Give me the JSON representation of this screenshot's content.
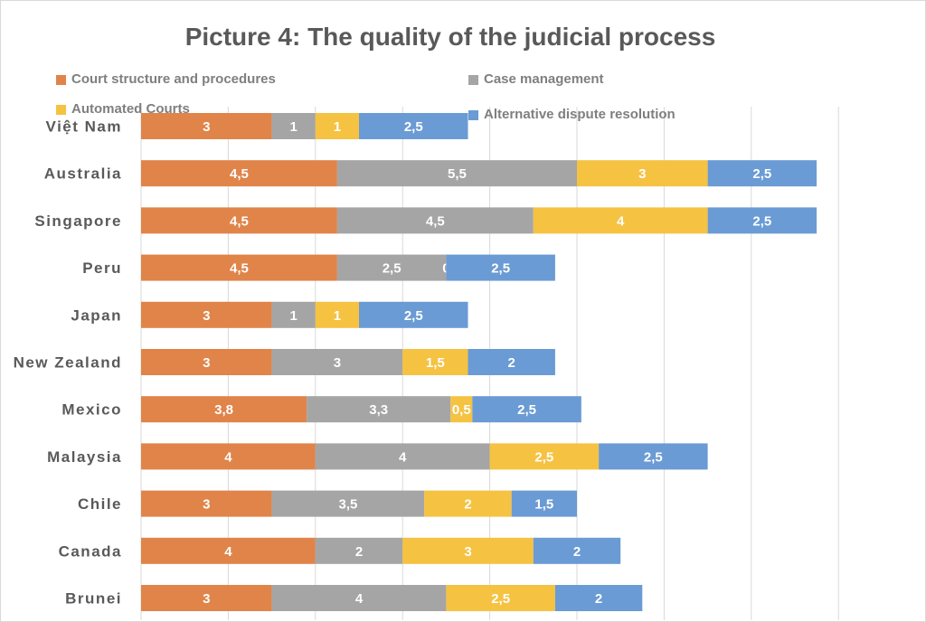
{
  "chart_data": {
    "type": "bar",
    "orientation": "horizontal",
    "stacked": true,
    "title": "Picture 4: The quality of the judicial process",
    "xlabel": "",
    "ylabel": "",
    "xlim": [
      0,
      16
    ],
    "grid": true,
    "legend_position": "top",
    "categories": [
      "Việt Nam",
      "Australia",
      "Singapore",
      "Peru",
      "Japan",
      "New Zealand",
      "Mexico",
      "Malaysia",
      "Chile",
      "Canada",
      "Brunei"
    ],
    "series": [
      {
        "name": "Court structure and procedures",
        "color": "#e0844a",
        "values": [
          3,
          4.5,
          4.5,
          4.5,
          3,
          3,
          3.8,
          4,
          3,
          4,
          3
        ],
        "labels": [
          "3",
          "4,5",
          "4,5",
          "4,5",
          "3",
          "3",
          "3,8",
          "4",
          "3",
          "4",
          "3"
        ]
      },
      {
        "name": "Case management",
        "color": "#a5a5a5",
        "values": [
          1,
          5.5,
          4.5,
          2.5,
          1,
          3,
          3.3,
          4,
          3.5,
          2,
          4
        ],
        "labels": [
          "1",
          "5,5",
          "4,5",
          "2,5",
          "1",
          "3",
          "3,3",
          "4",
          "3,5",
          "2",
          "4"
        ]
      },
      {
        "name": "Automated Courts",
        "color": "#f5c242",
        "values": [
          1,
          3,
          4,
          0,
          1,
          1.5,
          0.5,
          2.5,
          2,
          3,
          2.5
        ],
        "labels": [
          "1",
          "3",
          "4",
          "0",
          "1",
          "1,5",
          "0,5",
          "2,5",
          "2",
          "3",
          "2,5"
        ]
      },
      {
        "name": "Alternative dispute resolution",
        "color": "#6a9bd4",
        "values": [
          2.5,
          2.5,
          2.5,
          2.5,
          2.5,
          2,
          2.5,
          2.5,
          1.5,
          2,
          2
        ],
        "labels": [
          "2,5",
          "2,5",
          "2,5",
          "2,5",
          "2,5",
          "2",
          "2,5",
          "2,5",
          "1,5",
          "2",
          "2"
        ]
      }
    ]
  }
}
